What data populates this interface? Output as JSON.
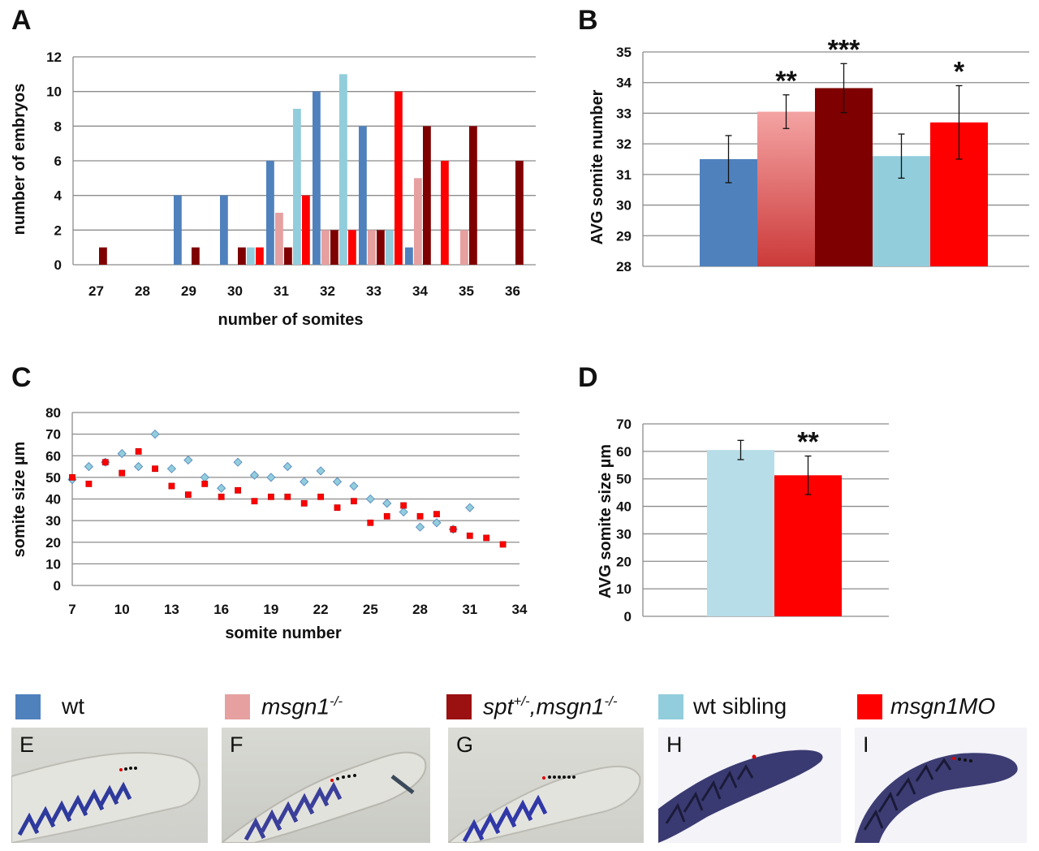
{
  "panel_letters": {
    "A": "A",
    "B": "B",
    "C": "C",
    "D": "D"
  },
  "colors": {
    "wt": "#4f81bd",
    "msgn1": "#e6a0a0",
    "spt_msgn1": "#7f0000",
    "wt_sibling": "#92cddc",
    "msgn1MO": "#ff0000",
    "grid": "#8c8c8c"
  },
  "chart_data": [
    {
      "panel": "A",
      "type": "bar",
      "xlabel": "number of somites",
      "ylabel": "number of embryos",
      "ylim": [
        0,
        12
      ],
      "yticks": [
        0,
        2,
        4,
        6,
        8,
        10,
        12
      ],
      "categories": [
        "27",
        "28",
        "29",
        "30",
        "31",
        "32",
        "33",
        "34",
        "35",
        "36"
      ],
      "grid": true,
      "series": [
        {
          "key": "wt",
          "values": [
            0,
            0,
            4,
            4,
            6,
            10,
            8,
            1,
            0,
            0
          ]
        },
        {
          "key": "msgn1",
          "values": [
            0,
            0,
            0,
            0,
            3,
            2,
            2,
            5,
            2,
            0
          ]
        },
        {
          "key": "spt_msgn1",
          "values": [
            1,
            0,
            1,
            1,
            1,
            2,
            2,
            8,
            8,
            6
          ]
        },
        {
          "key": "wt_sibling",
          "values": [
            0,
            0,
            0,
            1,
            9,
            11,
            2,
            0,
            0,
            0
          ]
        },
        {
          "key": "msgn1MO",
          "values": [
            0,
            0,
            0,
            1,
            4,
            2,
            10,
            6,
            0,
            0
          ]
        }
      ]
    },
    {
      "panel": "B",
      "type": "bar",
      "ylabel": "AVG somite number",
      "ylim": [
        28,
        35
      ],
      "yticks": [
        28,
        29,
        30,
        31,
        32,
        33,
        34,
        35
      ],
      "grid": true,
      "bars": [
        {
          "key": "wt",
          "value": 31.5,
          "error": 0.77,
          "sig": ""
        },
        {
          "key": "msgn1",
          "value": 33.05,
          "error": 0.55,
          "sig": "**"
        },
        {
          "key": "spt_msgn1",
          "value": 33.82,
          "error": 0.8,
          "sig": "***"
        },
        {
          "key": "wt_sibling",
          "value": 31.6,
          "error": 0.72,
          "sig": ""
        },
        {
          "key": "msgn1MO",
          "value": 32.7,
          "error": 1.2,
          "sig": "*"
        }
      ]
    },
    {
      "panel": "C",
      "type": "scatter",
      "xlabel": "somite number",
      "ylabel": "somite size µm",
      "xlim": [
        7,
        34
      ],
      "xticks": [
        7,
        10,
        13,
        16,
        19,
        22,
        25,
        28,
        31,
        34
      ],
      "ylim": [
        0,
        80
      ],
      "yticks": [
        0,
        10,
        20,
        30,
        40,
        50,
        60,
        70,
        80
      ],
      "grid": true,
      "series": [
        {
          "key": "wt_sibling",
          "marker": "diamond",
          "points": [
            [
              7,
              49
            ],
            [
              8,
              55
            ],
            [
              9,
              57
            ],
            [
              10,
              61
            ],
            [
              11,
              55
            ],
            [
              12,
              70
            ],
            [
              13,
              54
            ],
            [
              14,
              58
            ],
            [
              15,
              50
            ],
            [
              16,
              45
            ],
            [
              17,
              57
            ],
            [
              18,
              51
            ],
            [
              19,
              50
            ],
            [
              20,
              55
            ],
            [
              21,
              48
            ],
            [
              22,
              53
            ],
            [
              23,
              48
            ],
            [
              24,
              46
            ],
            [
              25,
              40
            ],
            [
              26,
              38
            ],
            [
              27,
              34
            ],
            [
              28,
              27
            ],
            [
              29,
              29
            ],
            [
              30,
              26
            ],
            [
              31,
              36
            ]
          ]
        },
        {
          "key": "msgn1MO",
          "marker": "square",
          "points": [
            [
              7,
              50
            ],
            [
              8,
              47
            ],
            [
              9,
              57
            ],
            [
              10,
              52
            ],
            [
              11,
              62
            ],
            [
              12,
              54
            ],
            [
              13,
              46
            ],
            [
              14,
              42
            ],
            [
              15,
              47
            ],
            [
              16,
              41
            ],
            [
              17,
              44
            ],
            [
              18,
              39
            ],
            [
              19,
              41
            ],
            [
              20,
              41
            ],
            [
              21,
              38
            ],
            [
              22,
              41
            ],
            [
              23,
              36
            ],
            [
              24,
              39
            ],
            [
              25,
              29
            ],
            [
              26,
              32
            ],
            [
              27,
              37
            ],
            [
              28,
              32
            ],
            [
              29,
              33
            ],
            [
              30,
              26
            ],
            [
              31,
              23
            ],
            [
              32,
              22
            ],
            [
              33,
              19
            ]
          ]
        }
      ]
    },
    {
      "panel": "D",
      "type": "bar",
      "ylabel": "AVG somite size µm",
      "ylim": [
        0,
        70
      ],
      "yticks": [
        0,
        10,
        20,
        30,
        40,
        50,
        60,
        70
      ],
      "grid": true,
      "bars": [
        {
          "key": "wt_sibling",
          "value": 60.5,
          "error": 3.5,
          "sig": ""
        },
        {
          "key": "msgn1MO",
          "value": 51.3,
          "error": 7.0,
          "sig": "**"
        }
      ]
    }
  ],
  "legend": [
    {
      "key": "wt",
      "label": "wt"
    },
    {
      "key": "msgn1",
      "label": "msgn1",
      "sup": "-/-"
    },
    {
      "key": "spt_msgn1",
      "label_a": "spt",
      "sup_a": "+/-",
      "label_b": ",msgn1",
      "sup_b": "-/-"
    },
    {
      "key": "wt_sibling",
      "label": "wt sibling"
    },
    {
      "key": "msgn1MO",
      "label": "msgn1MO"
    }
  ],
  "photos": [
    {
      "letter": "E",
      "style": "light"
    },
    {
      "letter": "F",
      "style": "light"
    },
    {
      "letter": "G",
      "style": "light"
    },
    {
      "letter": "H",
      "style": "dark"
    },
    {
      "letter": "I",
      "style": "dark"
    }
  ]
}
